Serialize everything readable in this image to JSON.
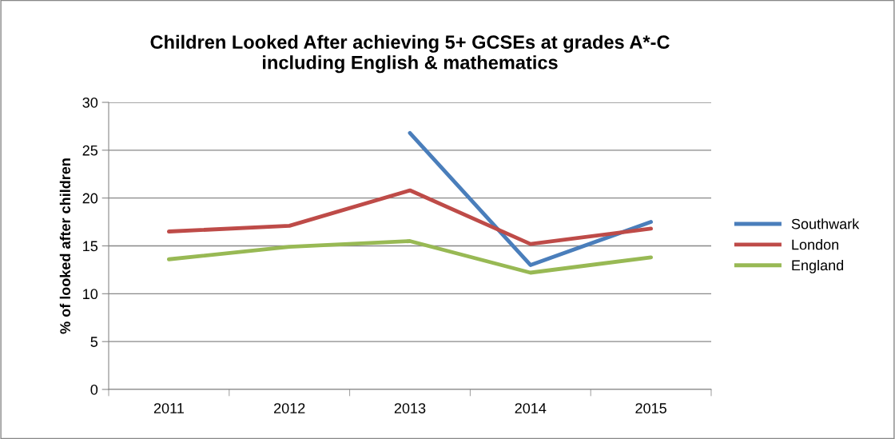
{
  "chart_data": {
    "type": "line",
    "title": "Children Looked After achieving 5+ GCSEs at grades A*-C\nincluding English & mathematics",
    "ylabel": "% of looked after children",
    "categories": [
      "2011",
      "2012",
      "2013",
      "2014",
      "2015"
    ],
    "series": [
      {
        "name": "Southwark",
        "color": "#4a7ebb",
        "values": [
          null,
          null,
          26.8,
          13.0,
          17.5
        ]
      },
      {
        "name": "London",
        "color": "#be4b48",
        "values": [
          16.5,
          17.1,
          20.8,
          15.2,
          16.8
        ]
      },
      {
        "name": "England",
        "color": "#98b954",
        "values": [
          13.6,
          14.9,
          15.5,
          12.2,
          13.8
        ]
      }
    ],
    "ylim": [
      0,
      30
    ],
    "yticks": [
      0,
      5,
      10,
      15,
      20,
      25,
      30
    ],
    "grid": "y",
    "legend": "right",
    "marker": "none",
    "line_style": "solid"
  }
}
